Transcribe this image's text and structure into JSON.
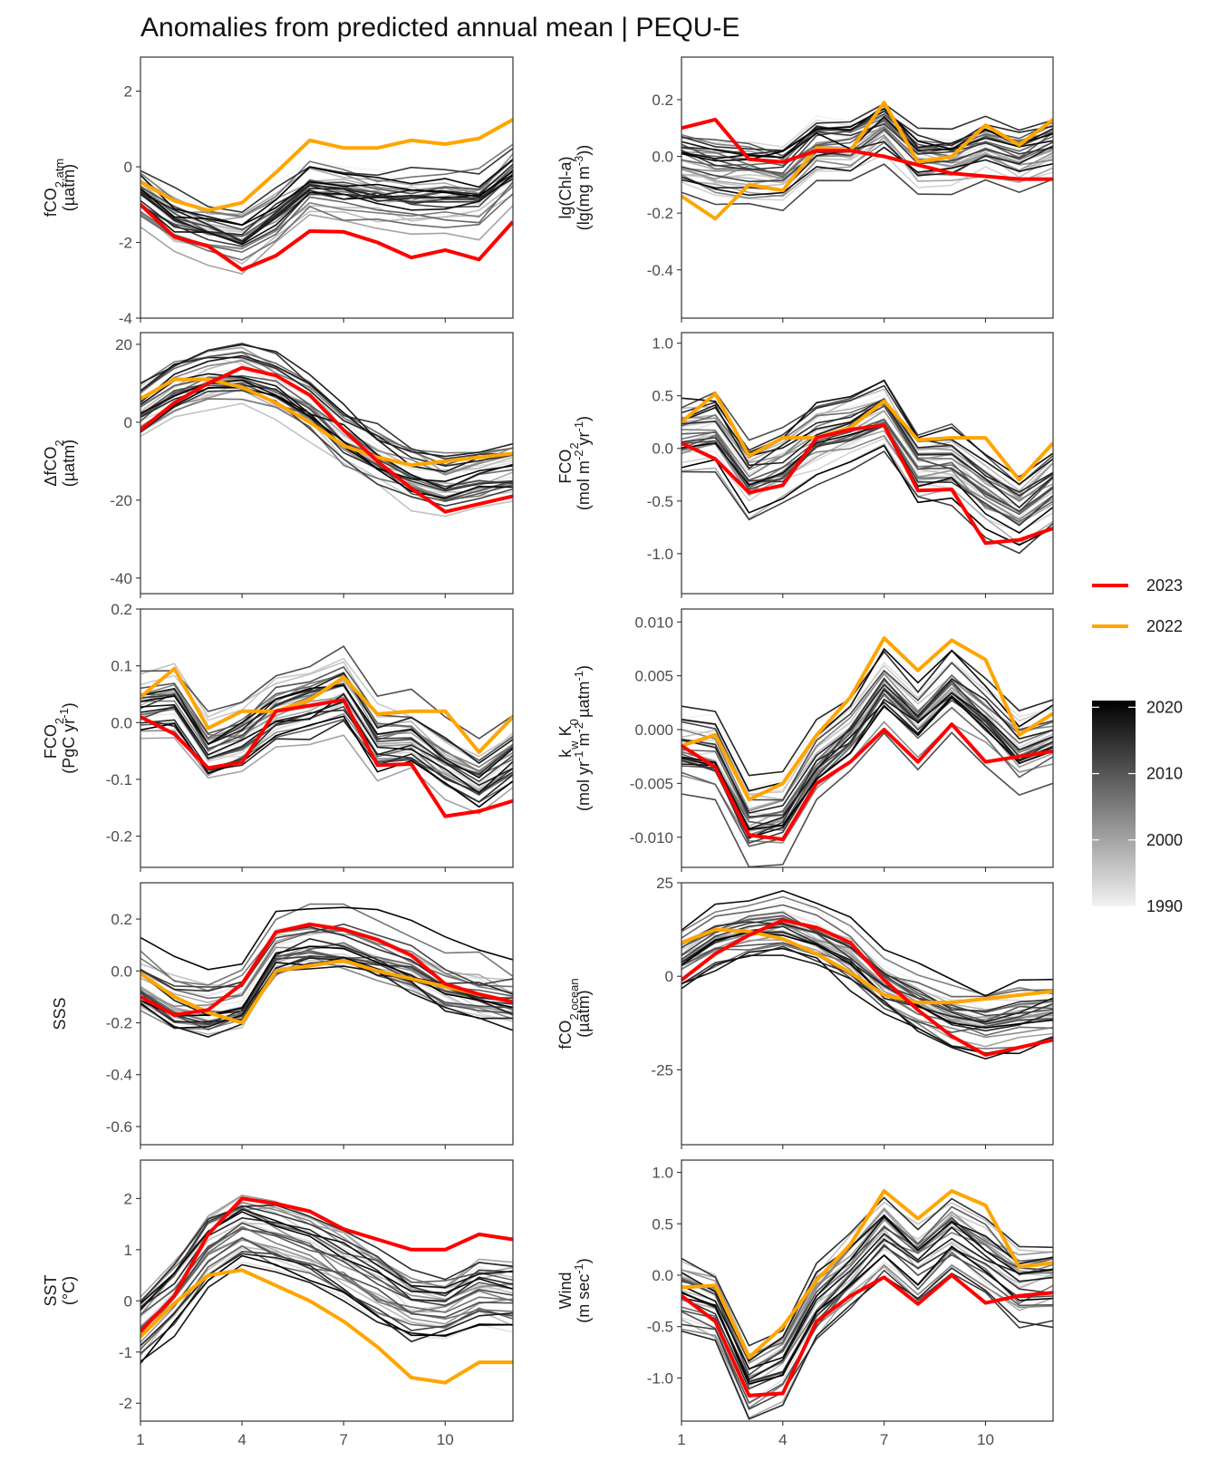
{
  "title": "Anomalies from predicted annual mean | PEQU-E",
  "colors": {
    "y2023": "#ff0000",
    "y2022": "#ffa500",
    "bg_line_dark": "#000000",
    "bg_line_light": "#f2f2f2",
    "panel_border": "#333333"
  },
  "legend": {
    "items": [
      {
        "label": "2023",
        "color": "#ff0000"
      },
      {
        "label": "2022",
        "color": "#ffa500"
      }
    ],
    "colorbar": {
      "labels": [
        "2020",
        "2010",
        "2000",
        "1990"
      ],
      "min": 1990,
      "max": 2021
    }
  },
  "chart_data": {
    "type": "line",
    "x": [
      1,
      2,
      3,
      4,
      5,
      6,
      7,
      8,
      9,
      10,
      11,
      12
    ],
    "xticks": [
      1,
      4,
      7,
      10
    ],
    "xlim": [
      1,
      12
    ],
    "background_years": {
      "from": 1990,
      "to": 2021,
      "style": "grey ramp from light (1990) to black (2021)"
    },
    "panels": [
      {
        "id": "fco2-atm",
        "ylabel": [
          "fCO<tspan baseline-shift='sub' font-size='13'>2,atm</tspan>",
          "(µatm)"
        ],
        "ylim": [
          -4,
          2.9
        ],
        "yticks": [
          -4,
          -2,
          0,
          2
        ],
        "series": [
          {
            "name": "2023",
            "values": [
              -1.0,
              -1.85,
              -2.1,
              -2.72,
              -2.35,
              -1.7,
              -1.72,
              -2.0,
              -2.4,
              -2.2,
              -2.45,
              -1.45
            ]
          },
          {
            "name": "2022",
            "values": [
              -0.4,
              -0.9,
              -1.15,
              -0.95,
              -0.15,
              0.7,
              0.5,
              0.5,
              0.7,
              0.6,
              0.75,
              1.25
            ]
          }
        ]
      },
      {
        "id": "chl",
        "ylabel": [
          "lg(Chl-a)",
          "(lg(mg m<tspan baseline-shift='super' font-size='13'>-3</tspan>))"
        ],
        "ylim": [
          -0.57,
          0.35
        ],
        "yticks": [
          -0.4,
          -0.2,
          0.0,
          0.2
        ],
        "series": [
          {
            "name": "2023",
            "values": [
              0.1,
              0.13,
              -0.01,
              -0.02,
              0.02,
              0.02,
              0.0,
              -0.03,
              -0.06,
              -0.07,
              -0.08,
              -0.08
            ]
          },
          {
            "name": "2022",
            "values": [
              -0.14,
              -0.22,
              -0.1,
              -0.12,
              0.03,
              0.02,
              0.19,
              -0.02,
              0.0,
              0.11,
              0.04,
              0.13
            ]
          }
        ]
      },
      {
        "id": "dfco2",
        "ylabel": [
          "ΔfCO<tspan baseline-shift='sub' font-size='13'>2</tspan>",
          "(µatm)"
        ],
        "ylim": [
          -44,
          23
        ],
        "yticks": [
          -40,
          -20,
          0,
          20
        ],
        "series": [
          {
            "name": "2023",
            "values": [
              -2,
              5,
              10,
              14,
              12,
              7,
              -2,
              -10,
              -17,
              -23,
              -21,
              -19
            ]
          },
          {
            "name": "2022",
            "values": [
              6,
              11,
              11,
              9,
              5,
              0,
              -6,
              -9,
              -11,
              -10,
              -9,
              -8
            ]
          }
        ]
      },
      {
        "id": "fco2-flux",
        "ylabel": [
          "FCO<tspan baseline-shift='sub' font-size='13'>2</tspan>",
          "(mol m<tspan baseline-shift='super' font-size='13'>-2</tspan> yr<tspan baseline-shift='super' font-size='13'>-1</tspan>)"
        ],
        "ylim": [
          -1.38,
          1.1
        ],
        "yticks": [
          -1.0,
          -0.5,
          0.0,
          0.5,
          1.0
        ],
        "series": [
          {
            "name": "2023",
            "values": [
              0.05,
              -0.1,
              -0.42,
              -0.35,
              0.1,
              0.18,
              0.22,
              -0.4,
              -0.39,
              -0.9,
              -0.87,
              -0.76
            ]
          },
          {
            "name": "2022",
            "values": [
              0.25,
              0.52,
              -0.07,
              0.1,
              0.1,
              0.2,
              0.45,
              0.08,
              0.1,
              0.1,
              -0.3,
              0.05
            ]
          }
        ]
      },
      {
        "id": "fco2-pgc",
        "ylabel": [
          "FCO<tspan baseline-shift='sub' font-size='13'>2</tspan>",
          "(PgC yr<tspan baseline-shift='super' font-size='13'>-1</tspan>)"
        ],
        "ylim": [
          -0.255,
          0.2
        ],
        "yticks": [
          -0.2,
          -0.1,
          0.0,
          0.1,
          0.2
        ],
        "series": [
          {
            "name": "2023",
            "values": [
              0.01,
              -0.02,
              -0.08,
              -0.07,
              0.02,
              0.03,
              0.04,
              -0.075,
              -0.073,
              -0.165,
              -0.156,
              -0.138
            ]
          },
          {
            "name": "2022",
            "values": [
              0.045,
              0.095,
              -0.01,
              0.02,
              0.02,
              0.04,
              0.08,
              0.015,
              0.02,
              0.02,
              -0.052,
              0.01
            ]
          }
        ]
      },
      {
        "id": "kw-k0",
        "ylabel": [
          "k<tspan baseline-shift='sub' font-size='13'>w</tspan> K<tspan baseline-shift='sub' font-size='13'>0</tspan>",
          "(mol yr<tspan baseline-shift='super' font-size='13'>-1</tspan> m<tspan baseline-shift='super' font-size='13'>-2</tspan> µatm<tspan baseline-shift='super' font-size='13'>-1</tspan>)"
        ],
        "ylim": [
          -0.0128,
          0.0112
        ],
        "yticks": [
          -0.01,
          -0.005,
          0.0,
          0.005,
          0.01
        ],
        "series": [
          {
            "name": "2023",
            "values": [
              -0.0015,
              -0.0035,
              -0.0098,
              -0.0102,
              -0.005,
              -0.003,
              0.0,
              -0.003,
              0.0005,
              -0.003,
              -0.0025,
              -0.002
            ]
          },
          {
            "name": "2022",
            "values": [
              -0.0015,
              -0.0005,
              -0.0065,
              -0.005,
              -0.0005,
              0.003,
              0.0085,
              0.0055,
              0.0083,
              0.0065,
              -0.0005,
              0.0015
            ]
          }
        ]
      },
      {
        "id": "sss",
        "ylabel": [
          "SSS"
        ],
        "ylim": [
          -0.67,
          0.34
        ],
        "yticks": [
          -0.6,
          -0.4,
          -0.2,
          0.0,
          0.2
        ],
        "series": [
          {
            "name": "2023",
            "values": [
              -0.1,
              -0.17,
              -0.15,
              -0.05,
              0.15,
              0.18,
              0.16,
              0.12,
              0.06,
              -0.05,
              -0.09,
              -0.12
            ]
          },
          {
            "name": "2022",
            "values": [
              -0.01,
              -0.1,
              -0.16,
              -0.2,
              0.0,
              0.02,
              0.04,
              0.0,
              -0.03,
              -0.06,
              -0.09,
              -0.12
            ]
          }
        ]
      },
      {
        "id": "fco2-ocean",
        "ylabel": [
          "fCO<tspan baseline-shift='sub' font-size='13'>2,ocean</tspan>",
          "(µatm)"
        ],
        "ylim": [
          -45,
          25
        ],
        "yticks": [
          -25,
          0,
          25
        ],
        "series": [
          {
            "name": "2023",
            "values": [
              -1,
              6,
              11,
              15,
              13,
              9,
              -1,
              -9,
              -16,
              -21,
              -19,
              -17
            ]
          },
          {
            "name": "2022",
            "values": [
              9,
              12.5,
              12,
              10,
              6,
              1,
              -5,
              -7,
              -7,
              -6,
              -5,
              -4
            ]
          }
        ]
      },
      {
        "id": "sst",
        "ylabel": [
          "SST",
          "(°C)"
        ],
        "ylim": [
          -2.35,
          2.75
        ],
        "yticks": [
          -2,
          -1,
          0,
          1,
          2
        ],
        "series": [
          {
            "name": "2023",
            "values": [
              -0.6,
              0.1,
              1.3,
              2.0,
              1.9,
              1.75,
              1.4,
              1.2,
              1.0,
              1.0,
              1.3,
              1.2
            ]
          },
          {
            "name": "2022",
            "values": [
              -0.7,
              -0.05,
              0.5,
              0.6,
              0.3,
              0.0,
              -0.4,
              -0.9,
              -1.5,
              -1.6,
              -1.2,
              -1.2
            ]
          }
        ]
      },
      {
        "id": "wind",
        "ylabel": [
          "Wind",
          "(m sec<tspan baseline-shift='super' font-size='13'>-1</tspan>)"
        ],
        "ylim": [
          -1.42,
          1.12
        ],
        "yticks": [
          -1.0,
          -0.5,
          0.0,
          0.5,
          1.0
        ],
        "series": [
          {
            "name": "2023",
            "values": [
              -0.2,
              -0.45,
              -1.17,
              -1.15,
              -0.45,
              -0.2,
              -0.02,
              -0.28,
              0.0,
              -0.27,
              -0.2,
              -0.17
            ]
          },
          {
            "name": "2022",
            "values": [
              -0.12,
              -0.1,
              -0.8,
              -0.5,
              -0.05,
              0.3,
              0.82,
              0.55,
              0.82,
              0.68,
              0.08,
              0.12
            ]
          }
        ]
      }
    ]
  }
}
